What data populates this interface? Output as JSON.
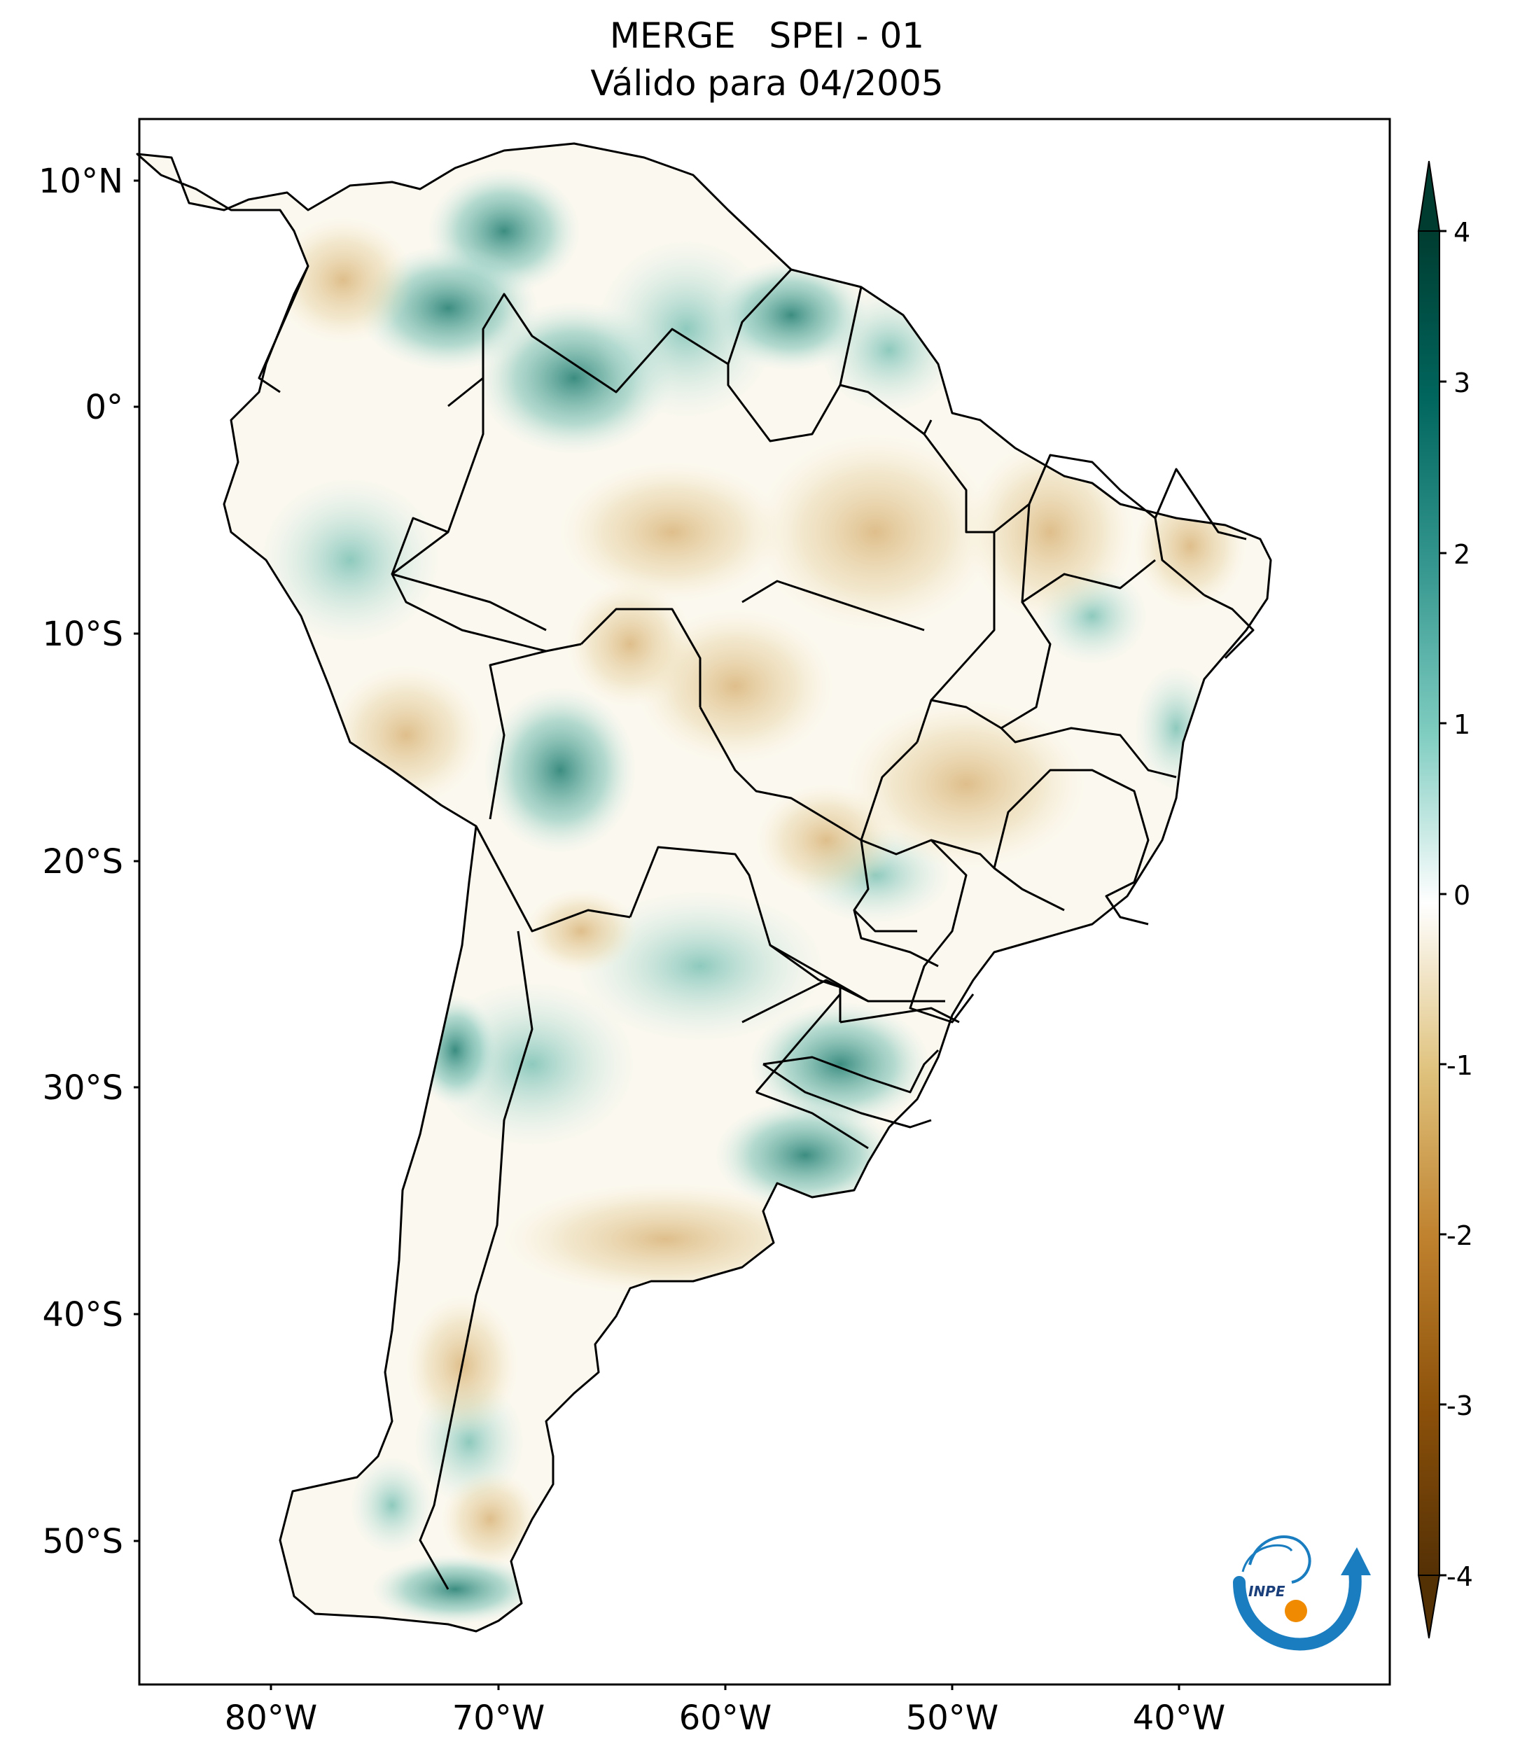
{
  "title": {
    "line1": "MERGE   SPEI - 01",
    "line2": "Válido para 04/2005"
  },
  "map": {
    "region": "South America",
    "lon_range": [
      -85,
      -30
    ],
    "lat_range": [
      -57,
      13
    ],
    "lat_ticks": [
      "10°N",
      "0°",
      "10°S",
      "20°S",
      "30°S",
      "40°S",
      "50°S"
    ],
    "lon_ticks": [
      "80°W",
      "70°W",
      "60°W",
      "50°W",
      "40°W"
    ],
    "colormap": "BrBG",
    "colors": {
      "dry_extreme": "#543005",
      "dry": "#bf812d",
      "dry_light": "#dfc27d",
      "neutral": "#ffffff",
      "wet_light": "#80cdc1",
      "wet": "#35978f",
      "wet_extreme": "#003c30"
    }
  },
  "colorbar": {
    "ticks": [
      "4",
      "3",
      "2",
      "1",
      "0",
      "-1",
      "-2",
      "-3",
      "-4"
    ],
    "min": -4,
    "max": 4,
    "extend": "both"
  },
  "logo": {
    "text": "INPE",
    "icon": "inpe-logo-icon"
  }
}
